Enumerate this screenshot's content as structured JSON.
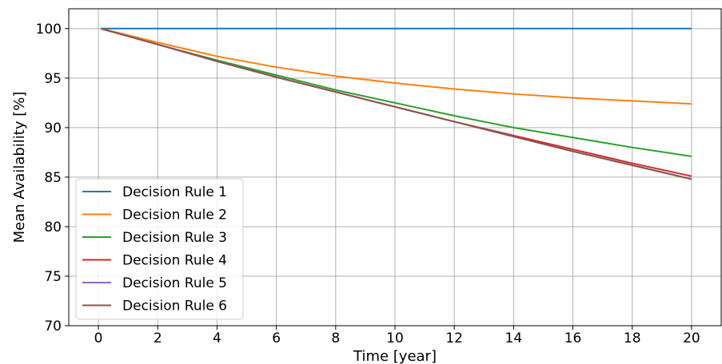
{
  "chart_data": {
    "type": "line",
    "title": "",
    "xlabel": "Time [year]",
    "ylabel": "Mean Availability [%]",
    "xlim": [
      -1,
      21
    ],
    "ylim": [
      70,
      102
    ],
    "xticks": [
      0,
      2,
      4,
      6,
      8,
      10,
      12,
      14,
      16,
      18,
      20
    ],
    "yticks": [
      70,
      75,
      80,
      85,
      90,
      95,
      100
    ],
    "grid": true,
    "legend_position": "lower-left",
    "x": [
      0.083,
      2,
      4,
      6,
      8,
      10,
      12,
      14,
      16,
      18,
      20
    ],
    "series": [
      {
        "name": "Decision Rule 1",
        "color": "#1f77b4",
        "values": [
          100,
          100,
          100,
          100,
          100,
          100,
          100,
          100,
          100,
          100,
          100
        ]
      },
      {
        "name": "Decision Rule 2",
        "color": "#ff7f0e",
        "values": [
          100,
          98.6,
          97.2,
          96.1,
          95.2,
          94.5,
          93.9,
          93.4,
          93.0,
          92.7,
          92.4
        ]
      },
      {
        "name": "Decision Rule 3",
        "color": "#2ca02c",
        "values": [
          100,
          98.4,
          96.8,
          95.3,
          93.8,
          92.5,
          91.2,
          90.0,
          89.0,
          88.0,
          87.1
        ]
      },
      {
        "name": "Decision Rule 4",
        "color": "#d62728",
        "values": [
          100,
          98.4,
          96.7,
          95.1,
          93.6,
          92.1,
          90.6,
          89.2,
          87.8,
          86.4,
          85.1
        ]
      },
      {
        "name": "Decision Rule 5",
        "color": "#9467bd",
        "values": [
          100,
          98.4,
          96.7,
          95.1,
          93.6,
          92.1,
          90.6,
          89.1,
          87.6,
          86.2,
          84.8
        ]
      },
      {
        "name": "Decision Rule 6",
        "color": "#8c564b",
        "values": [
          100,
          98.4,
          96.7,
          95.1,
          93.6,
          92.1,
          90.6,
          89.1,
          87.6,
          86.2,
          84.8
        ]
      }
    ]
  }
}
